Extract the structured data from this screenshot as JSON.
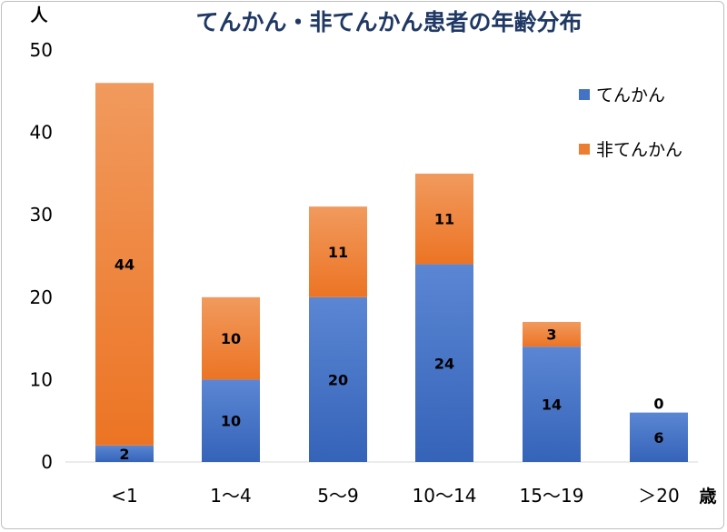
{
  "chart_data": {
    "type": "bar",
    "stacked": true,
    "title": "てんかん・非てんかん患者の年齢分布",
    "ylabel": "人",
    "xlabel": "歳",
    "categories": [
      "<1",
      "1～4",
      "5～9",
      "10～14",
      "15～19",
      "＞20"
    ],
    "series": [
      {
        "name": "てんかん",
        "values": [
          2,
          10,
          20,
          24,
          14,
          6
        ],
        "color": "#4472c4"
      },
      {
        "name": "非てんかん",
        "values": [
          44,
          10,
          11,
          11,
          3,
          0
        ],
        "color": "#ed7d31"
      }
    ],
    "ylim": [
      0,
      50
    ],
    "yticks": [
      0,
      10,
      20,
      30,
      40,
      50
    ],
    "grid": false,
    "legend": "top-right"
  }
}
